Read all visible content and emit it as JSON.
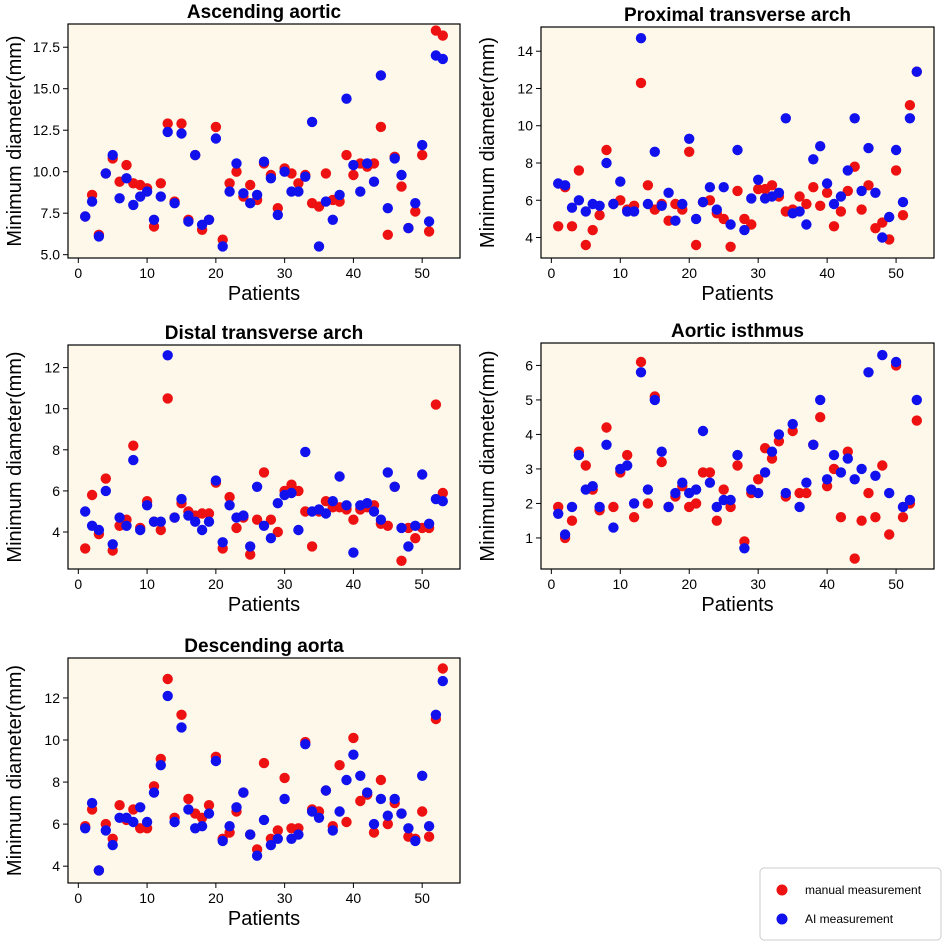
{
  "chart_data": [
    {
      "type": "scatter",
      "title": "Ascending aortic",
      "xlabel": "Patients",
      "ylabel": "Minimum diameter(mm)",
      "xlim": [
        -1.5,
        55.5
      ],
      "ylim": [
        4.8,
        18.9
      ],
      "xticks": [
        0,
        10,
        20,
        30,
        40,
        50
      ],
      "yticks": [
        5.0,
        7.5,
        10.0,
        12.5,
        15.0,
        17.5
      ],
      "ytick_labels": [
        "5.0",
        "7.5",
        "10.0",
        "12.5",
        "15.0",
        "17.5"
      ],
      "x": [
        1,
        2,
        3,
        4,
        5,
        6,
        7,
        8,
        9,
        10,
        11,
        12,
        13,
        14,
        15,
        16,
        17,
        18,
        19,
        20,
        21,
        22,
        23,
        24,
        25,
        26,
        27,
        28,
        29,
        30,
        31,
        32,
        33,
        34,
        35,
        36,
        37,
        38,
        39,
        40,
        41,
        42,
        43,
        44,
        45,
        46,
        47,
        48,
        49,
        50,
        51,
        52,
        53
      ],
      "series": [
        {
          "name": "manual measurement",
          "color": "#ee1111",
          "values": [
            7.3,
            8.6,
            6.2,
            9.9,
            10.8,
            9.4,
            10.4,
            9.3,
            9.2,
            9.0,
            6.7,
            9.3,
            12.9,
            8.2,
            12.9,
            7.1,
            11.0,
            6.5,
            7.1,
            12.7,
            5.9,
            9.3,
            10.0,
            8.5,
            9.2,
            8.3,
            10.5,
            9.8,
            7.8,
            10.2,
            9.9,
            9.3,
            9.8,
            8.1,
            7.9,
            9.9,
            8.3,
            8.2,
            11.0,
            9.8,
            10.5,
            10.3,
            10.5,
            12.7,
            6.2,
            10.9,
            9.1,
            6.6,
            7.6,
            11.0,
            6.4,
            18.5,
            18.2
          ]
        },
        {
          "name": "AI measurement",
          "color": "#1111ee",
          "values": [
            7.3,
            8.2,
            6.1,
            9.9,
            11.0,
            8.4,
            9.6,
            8.0,
            8.5,
            8.8,
            7.1,
            8.5,
            12.4,
            8.1,
            12.3,
            7.0,
            11.0,
            6.8,
            7.1,
            12.0,
            5.5,
            8.8,
            10.5,
            8.7,
            8.1,
            8.6,
            10.6,
            9.6,
            7.4,
            10.0,
            8.8,
            8.8,
            9.7,
            13.0,
            5.5,
            8.2,
            7.1,
            8.6,
            14.4,
            10.4,
            8.8,
            10.5,
            9.4,
            15.8,
            7.8,
            10.8,
            9.8,
            6.6,
            8.1,
            11.6,
            7.0,
            17.0,
            16.8
          ]
        }
      ]
    },
    {
      "type": "scatter",
      "title": "Proximal transverse arch",
      "xlabel": "Patients",
      "ylabel": "Minimum diameter(mm)",
      "xlim": [
        -1.5,
        55.5
      ],
      "ylim": [
        2.9,
        15.3
      ],
      "xticks": [
        0,
        10,
        20,
        30,
        40,
        50
      ],
      "yticks": [
        4,
        6,
        8,
        10,
        12,
        14
      ],
      "ytick_labels": [
        "4",
        "6",
        "8",
        "10",
        "12",
        "14"
      ],
      "x": [
        1,
        2,
        3,
        4,
        5,
        6,
        7,
        8,
        9,
        10,
        11,
        12,
        13,
        14,
        15,
        16,
        17,
        18,
        19,
        20,
        21,
        22,
        23,
        24,
        25,
        26,
        27,
        28,
        29,
        30,
        31,
        32,
        33,
        34,
        35,
        36,
        37,
        38,
        39,
        40,
        41,
        42,
        43,
        44,
        45,
        46,
        47,
        48,
        49,
        50,
        51,
        52,
        53
      ],
      "series": [
        {
          "name": "manual measurement",
          "color": "#ee1111",
          "values": [
            4.6,
            6.7,
            4.6,
            7.6,
            3.6,
            4.4,
            5.2,
            8.7,
            5.8,
            6.0,
            5.5,
            5.7,
            12.3,
            6.8,
            5.5,
            5.8,
            4.9,
            5.8,
            5.5,
            8.6,
            3.6,
            5.9,
            6.0,
            5.3,
            5.0,
            3.5,
            6.5,
            5.0,
            4.7,
            6.6,
            6.6,
            6.8,
            6.2,
            5.4,
            5.5,
            6.2,
            5.8,
            6.7,
            5.7,
            6.4,
            4.6,
            5.4,
            6.5,
            7.8,
            5.5,
            6.8,
            4.5,
            4.8,
            3.9,
            7.6,
            5.2,
            11.1,
            12.9
          ]
        },
        {
          "name": "AI measurement",
          "color": "#1111ee",
          "values": [
            6.9,
            6.8,
            5.6,
            6.0,
            5.4,
            5.8,
            5.7,
            8.0,
            5.8,
            7.0,
            5.4,
            5.4,
            14.7,
            5.8,
            8.6,
            5.7,
            6.4,
            4.9,
            5.8,
            9.3,
            5.0,
            5.9,
            6.7,
            5.5,
            6.7,
            4.7,
            8.7,
            4.4,
            6.1,
            7.1,
            6.1,
            6.2,
            6.4,
            10.4,
            5.3,
            5.4,
            4.7,
            8.2,
            8.9,
            6.9,
            5.8,
            6.2,
            7.6,
            10.4,
            6.5,
            8.8,
            6.4,
            4.0,
            5.1,
            8.7,
            5.9,
            10.4,
            12.9
          ]
        }
      ]
    },
    {
      "type": "scatter",
      "title": "Distal transverse arch",
      "xlabel": "Patients",
      "ylabel": "Minimum diameter(mm)",
      "xlim": [
        -1.5,
        55.5
      ],
      "ylim": [
        2.2,
        13.1
      ],
      "xticks": [
        0,
        10,
        20,
        30,
        40,
        50
      ],
      "yticks": [
        4,
        6,
        8,
        10,
        12
      ],
      "ytick_labels": [
        "4",
        "6",
        "8",
        "10",
        "12"
      ],
      "x": [
        1,
        2,
        3,
        4,
        5,
        6,
        7,
        8,
        9,
        10,
        11,
        12,
        13,
        14,
        15,
        16,
        17,
        18,
        19,
        20,
        21,
        22,
        23,
        24,
        25,
        26,
        27,
        28,
        29,
        30,
        31,
        32,
        33,
        34,
        35,
        36,
        37,
        38,
        39,
        40,
        41,
        42,
        43,
        44,
        45,
        46,
        47,
        48,
        49,
        50,
        51,
        52,
        53
      ],
      "series": [
        {
          "name": "manual measurement",
          "color": "#ee1111",
          "values": [
            3.2,
            5.8,
            3.9,
            6.6,
            3.1,
            4.3,
            4.6,
            8.2,
            4.2,
            5.5,
            4.5,
            4.1,
            10.5,
            4.7,
            5.4,
            5.0,
            4.8,
            4.9,
            4.9,
            6.4,
            3.2,
            5.7,
            4.2,
            4.7,
            2.9,
            4.6,
            6.9,
            4.6,
            4.0,
            6.0,
            6.3,
            6.0,
            5.0,
            3.3,
            5.0,
            5.5,
            5.2,
            5.2,
            5.1,
            4.6,
            5.1,
            5.2,
            5.3,
            4.4,
            4.3,
            6.2,
            2.6,
            4.2,
            3.7,
            4.2,
            4.2,
            10.2,
            5.9
          ]
        },
        {
          "name": "AI measurement",
          "color": "#1111ee",
          "values": [
            5.0,
            4.3,
            4.1,
            6.0,
            3.4,
            4.7,
            4.3,
            7.5,
            4.1,
            5.3,
            4.5,
            4.5,
            12.6,
            4.7,
            5.6,
            4.8,
            4.5,
            4.1,
            4.5,
            6.5,
            3.5,
            5.3,
            4.7,
            4.8,
            3.3,
            6.2,
            4.3,
            3.7,
            5.4,
            5.8,
            5.9,
            4.1,
            7.9,
            5.0,
            5.1,
            4.9,
            5.5,
            6.7,
            5.3,
            3.0,
            5.3,
            5.4,
            5.0,
            4.6,
            6.9,
            6.2,
            4.2,
            3.3,
            4.3,
            6.8,
            4.4,
            5.6,
            5.5
          ]
        }
      ]
    },
    {
      "type": "scatter",
      "title": "Aortic isthmus",
      "xlabel": "Patients",
      "ylabel": "Minimum diameter(mm)",
      "xlim": [
        -1.5,
        55.5
      ],
      "ylim": [
        0.1,
        6.65
      ],
      "xticks": [
        0,
        10,
        20,
        30,
        40,
        50
      ],
      "yticks": [
        1,
        2,
        3,
        4,
        5,
        6
      ],
      "ytick_labels": [
        "1",
        "2",
        "3",
        "4",
        "5",
        "6"
      ],
      "x": [
        1,
        2,
        3,
        4,
        5,
        6,
        7,
        8,
        9,
        10,
        11,
        12,
        13,
        14,
        15,
        16,
        17,
        18,
        19,
        20,
        21,
        22,
        23,
        24,
        25,
        26,
        27,
        28,
        29,
        30,
        31,
        32,
        33,
        34,
        35,
        36,
        37,
        38,
        39,
        40,
        41,
        42,
        43,
        44,
        45,
        46,
        47,
        48,
        49,
        50,
        51,
        52,
        53
      ],
      "series": [
        {
          "name": "manual measurement",
          "color": "#ee1111",
          "values": [
            1.9,
            1.0,
            1.5,
            3.5,
            3.1,
            2.4,
            1.8,
            4.2,
            1.9,
            2.9,
            3.4,
            1.6,
            6.1,
            2.0,
            5.1,
            3.2,
            1.9,
            2.2,
            2.5,
            1.9,
            2.0,
            2.9,
            2.9,
            1.5,
            2.4,
            1.9,
            3.1,
            0.9,
            2.3,
            2.7,
            3.6,
            3.3,
            3.8,
            2.2,
            4.1,
            2.3,
            2.3,
            3.7,
            4.5,
            2.5,
            3.0,
            1.6,
            3.5,
            0.4,
            1.5,
            2.3,
            1.6,
            3.1,
            1.1,
            6.0,
            1.6,
            2.0,
            4.4
          ]
        },
        {
          "name": "AI measurement",
          "color": "#1111ee",
          "values": [
            1.7,
            1.1,
            1.9,
            3.4,
            2.4,
            2.5,
            1.9,
            3.7,
            1.3,
            3.0,
            3.1,
            2.0,
            5.8,
            2.4,
            5.0,
            3.5,
            1.9,
            2.3,
            2.6,
            2.3,
            2.4,
            4.1,
            2.6,
            1.9,
            2.1,
            2.1,
            3.4,
            0.7,
            2.4,
            2.3,
            2.9,
            3.5,
            4.0,
            2.3,
            4.3,
            1.9,
            2.6,
            3.7,
            5.0,
            2.7,
            3.4,
            2.9,
            3.3,
            2.7,
            3.0,
            5.8,
            2.8,
            6.3,
            2.3,
            6.1,
            1.9,
            2.1,
            5.0
          ]
        }
      ]
    },
    {
      "type": "scatter",
      "title": "Descending aorta",
      "xlabel": "Patients",
      "ylabel": "Minimum diameter(mm)",
      "xlim": [
        -1.5,
        55.5
      ],
      "ylim": [
        3.2,
        13.9
      ],
      "xticks": [
        0,
        10,
        20,
        30,
        40,
        50
      ],
      "yticks": [
        4,
        6,
        8,
        10,
        12
      ],
      "ytick_labels": [
        "4",
        "6",
        "8",
        "10",
        "12"
      ],
      "x": [
        1,
        2,
        3,
        4,
        5,
        6,
        7,
        8,
        9,
        10,
        11,
        12,
        13,
        14,
        15,
        16,
        17,
        18,
        19,
        20,
        21,
        22,
        23,
        24,
        25,
        26,
        27,
        28,
        29,
        30,
        31,
        32,
        33,
        34,
        35,
        36,
        37,
        38,
        39,
        40,
        41,
        42,
        43,
        44,
        45,
        46,
        47,
        48,
        49,
        50,
        51,
        52,
        53
      ],
      "series": [
        {
          "name": "manual measurement",
          "color": "#ee1111",
          "values": [
            5.9,
            6.7,
            3.8,
            6.0,
            5.3,
            6.9,
            6.2,
            6.7,
            5.8,
            5.8,
            7.8,
            9.1,
            12.9,
            6.3,
            11.2,
            7.2,
            6.5,
            6.3,
            6.9,
            9.2,
            5.3,
            5.6,
            6.6,
            7.5,
            5.5,
            4.8,
            8.9,
            5.3,
            5.7,
            8.2,
            5.8,
            5.8,
            9.9,
            6.7,
            6.6,
            7.6,
            5.9,
            8.8,
            6.1,
            10.1,
            7.1,
            7.4,
            5.6,
            8.1,
            6.0,
            7.0,
            6.5,
            5.4,
            5.3,
            6.6,
            5.4,
            11.0,
            13.4
          ]
        },
        {
          "name": "AI measurement",
          "color": "#1111ee",
          "values": [
            5.8,
            7.0,
            3.8,
            5.7,
            5.0,
            6.3,
            6.3,
            6.1,
            6.8,
            6.1,
            7.5,
            8.8,
            12.1,
            6.1,
            10.6,
            6.7,
            5.8,
            5.9,
            6.5,
            9.0,
            5.2,
            5.9,
            6.8,
            7.5,
            5.5,
            4.5,
            6.2,
            5.0,
            5.3,
            7.2,
            5.3,
            5.5,
            9.8,
            6.6,
            6.3,
            7.6,
            5.7,
            6.6,
            8.1,
            9.3,
            8.3,
            7.5,
            6.0,
            7.2,
            6.4,
            7.2,
            6.5,
            5.8,
            5.2,
            8.3,
            5.9,
            11.2,
            12.8
          ]
        }
      ]
    }
  ],
  "legend": {
    "position": "bottom-right",
    "entries": [
      {
        "label": "manual measurement",
        "color": "#ee1111"
      },
      {
        "label": "AI measurement",
        "color": "#1111ee"
      }
    ]
  }
}
